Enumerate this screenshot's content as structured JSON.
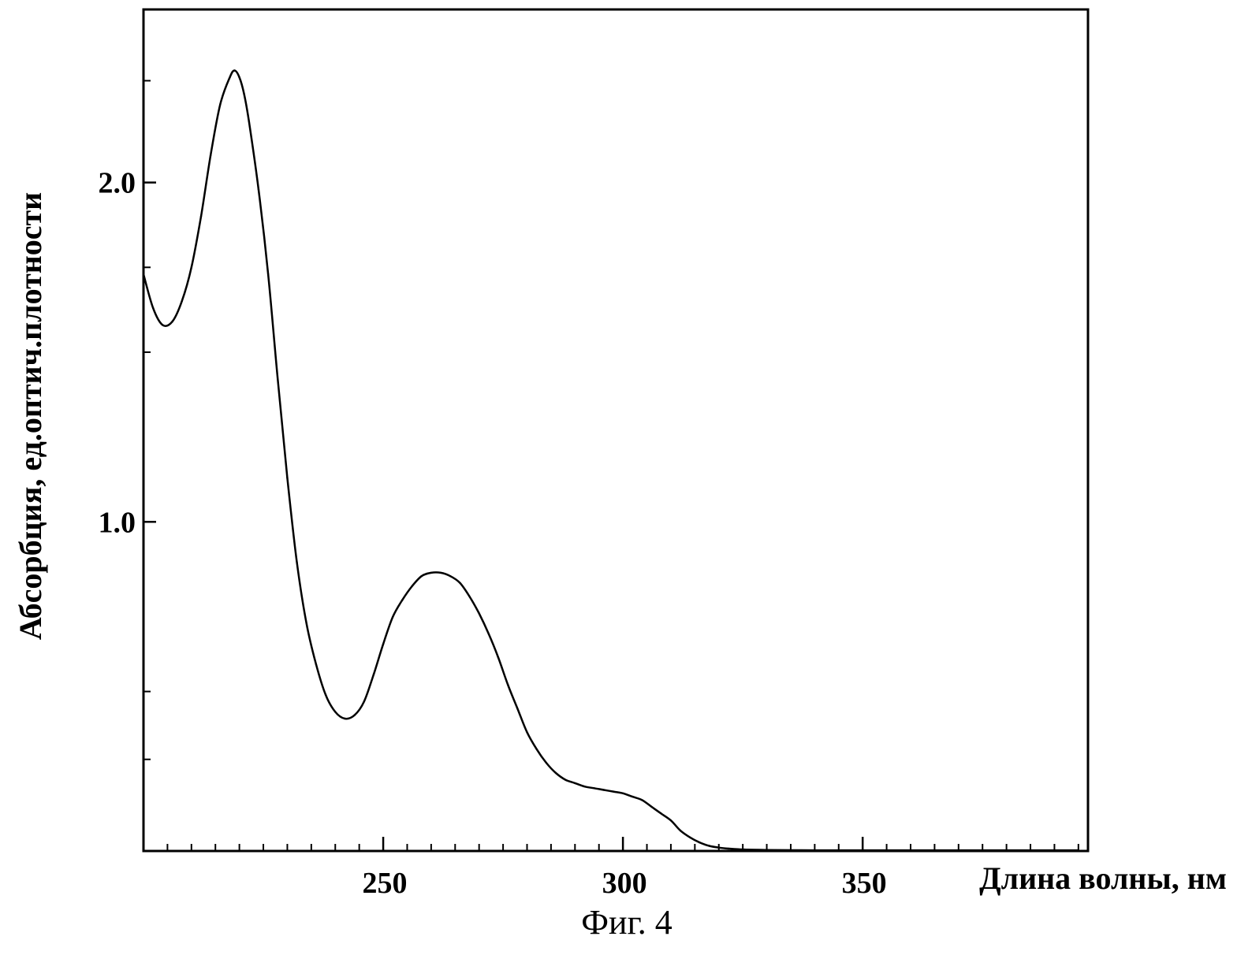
{
  "caption": "Фиг. 4",
  "chart_data": {
    "type": "line",
    "title": "",
    "xlabel": "Длина волны, нм",
    "ylabel": "Абсорбция, ед.оптич.плотности",
    "xlim": [
      200,
      397
    ],
    "ylim": [
      0.03,
      2.51
    ],
    "x_ticks_major": [
      250,
      300,
      350
    ],
    "x_tick_labels": [
      "250",
      "300",
      "350"
    ],
    "x_ticks_minor": [
      205,
      210,
      215,
      220,
      225,
      230,
      235,
      240,
      245,
      255,
      260,
      265,
      270,
      275,
      280,
      285,
      290,
      295,
      305,
      310,
      315,
      320,
      325,
      330,
      335,
      340,
      345,
      355,
      360,
      365,
      370,
      375,
      380,
      385,
      390,
      395
    ],
    "y_ticks_major": [
      1.0,
      2.0
    ],
    "y_tick_labels": [
      "1.0",
      "2.0"
    ],
    "y_ticks_minor": [
      0.3,
      0.5,
      1.5,
      1.75,
      2.3
    ],
    "grid": false,
    "series": [
      {
        "color": "#000000",
        "x": [
          200,
          202,
          204,
          206,
          208,
          210,
          212,
          214,
          216,
          218,
          219,
          220,
          221,
          222,
          224,
          226,
          228,
          230,
          232,
          234,
          236,
          238,
          240,
          242,
          244,
          246,
          248,
          250,
          252,
          254,
          256,
          258,
          260,
          262,
          264,
          266,
          268,
          270,
          272,
          274,
          276,
          278,
          280,
          282,
          284,
          286,
          288,
          290,
          292,
          294,
          296,
          298,
          300,
          302,
          304,
          306,
          308,
          310,
          312,
          314,
          316,
          318,
          320,
          322,
          324,
          326,
          330,
          340,
          350,
          360,
          370,
          380,
          390,
          395
        ],
        "y": [
          1.73,
          1.63,
          1.58,
          1.59,
          1.65,
          1.75,
          1.9,
          2.08,
          2.23,
          2.31,
          2.33,
          2.31,
          2.26,
          2.18,
          1.98,
          1.73,
          1.42,
          1.13,
          0.88,
          0.7,
          0.58,
          0.49,
          0.44,
          0.42,
          0.43,
          0.47,
          0.55,
          0.64,
          0.72,
          0.77,
          0.81,
          0.84,
          0.85,
          0.85,
          0.84,
          0.82,
          0.78,
          0.73,
          0.67,
          0.6,
          0.52,
          0.45,
          0.38,
          0.33,
          0.29,
          0.26,
          0.24,
          0.23,
          0.22,
          0.215,
          0.21,
          0.205,
          0.2,
          0.19,
          0.18,
          0.16,
          0.14,
          0.12,
          0.09,
          0.07,
          0.055,
          0.045,
          0.04,
          0.037,
          0.035,
          0.034,
          0.033,
          0.032,
          0.032,
          0.032,
          0.032,
          0.032,
          0.032,
          0.032
        ]
      }
    ]
  }
}
